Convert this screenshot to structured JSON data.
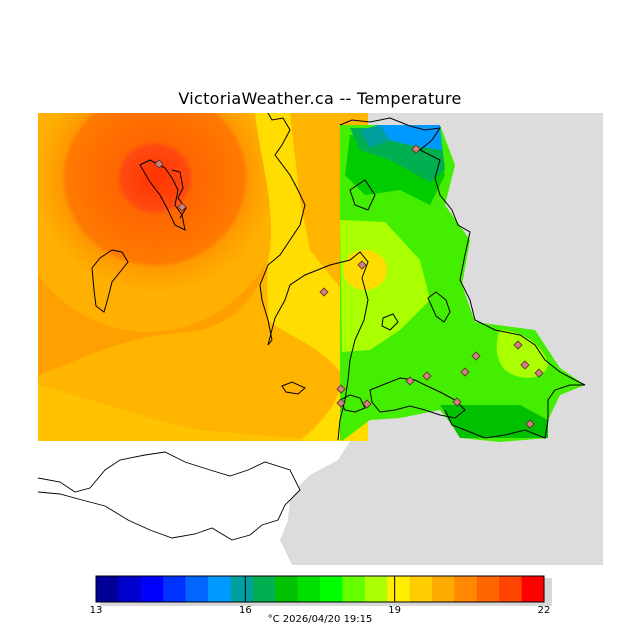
{
  "title": "VictoriaWeather.ca -- Temperature",
  "legend": {
    "unit": "°C",
    "timestamp": "2026/04/20 19:15",
    "min": 13,
    "max": 22,
    "step": 0.5,
    "tick_values": [
      "13",
      "16",
      "19",
      "22"
    ],
    "colors": [
      "#000099",
      "#0000cc",
      "#0000ff",
      "#0033ff",
      "#0066ff",
      "#0099ff",
      "#00a0a0",
      "#00b050",
      "#00c000",
      "#00e000",
      "#00ff00",
      "#66ff00",
      "#aaff00",
      "#ffee00",
      "#ffcc00",
      "#ffaa00",
      "#ff8800",
      "#ff6600",
      "#ff4400",
      "#ff0000"
    ]
  },
  "map": {
    "background_color": "#dcdcdc",
    "no_data_color": "#ffffff",
    "station_marker": "diamond",
    "station_color": "#d08080"
  },
  "caption": "°C  2026/04/20 19:15"
}
